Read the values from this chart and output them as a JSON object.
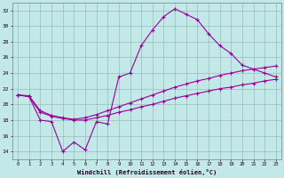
{
  "xlabel": "Windchill (Refroidissement éolien,°C)",
  "bg_color": "#c2e8e8",
  "grid_color": "#99bbbb",
  "line_color": "#990099",
  "hours": [
    0,
    1,
    2,
    3,
    4,
    5,
    6,
    7,
    8,
    9,
    10,
    11,
    12,
    13,
    14,
    15,
    16,
    17,
    18,
    19,
    20,
    21,
    22,
    23
  ],
  "temp": [
    21.2,
    21.0,
    18.0,
    17.8,
    14.0,
    15.2,
    14.2,
    17.8,
    17.5,
    23.5,
    24.0,
    27.5,
    29.5,
    31.2,
    32.2,
    31.5,
    30.8,
    29.0,
    27.5,
    26.5,
    25.0,
    24.5,
    24.0,
    23.5
  ],
  "wc_low": [
    21.2,
    21.0,
    19.0,
    18.5,
    18.2,
    18.0,
    18.0,
    18.3,
    18.6,
    19.0,
    19.3,
    19.7,
    20.0,
    20.4,
    20.8,
    21.1,
    21.4,
    21.7,
    22.0,
    22.2,
    22.5,
    22.7,
    23.0,
    23.2
  ],
  "wc_high": [
    21.2,
    21.1,
    19.2,
    18.6,
    18.3,
    18.1,
    18.3,
    18.7,
    19.2,
    19.7,
    20.2,
    20.7,
    21.2,
    21.7,
    22.2,
    22.6,
    23.0,
    23.3,
    23.7,
    24.0,
    24.3,
    24.5,
    24.7,
    24.9
  ],
  "ylim_min": 13,
  "ylim_max": 33,
  "yticks": [
    14,
    16,
    18,
    20,
    22,
    24,
    26,
    28,
    30,
    32
  ]
}
